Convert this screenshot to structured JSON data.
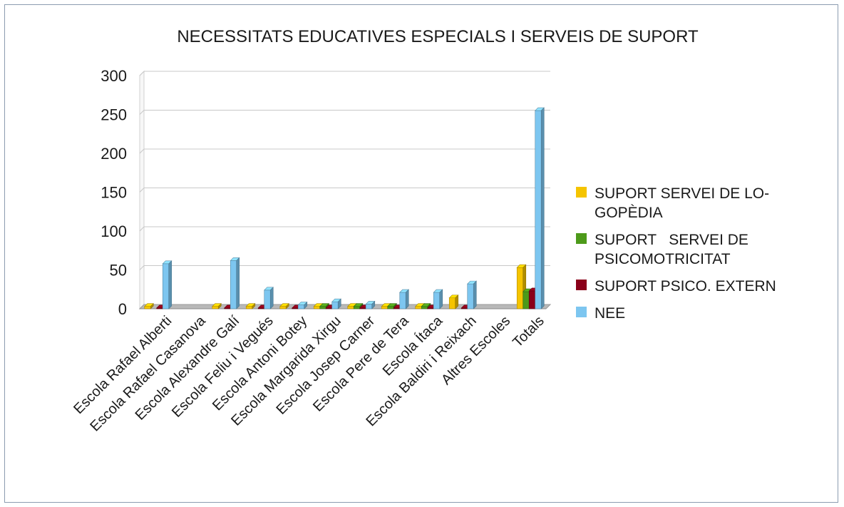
{
  "chart_data": {
    "type": "bar",
    "title": "NECESSITATS EDUCATIVES ESPECIALS I SERVEIS DE SUPORT",
    "categories": [
      "Escola Rafael Alberti",
      "Escola Rafael Casanova",
      "Escola Alexandre Galí",
      "Escola Feliu i Vegués",
      "Escola Antoni Botey",
      "Escola Margarida Xirgu",
      "Escola Josep Carner",
      "Escola Pere de Tera",
      "Escola Ítaca",
      "Escola Baldiri i Reixach",
      "Altres Escoles",
      "Totals"
    ],
    "series": [
      {
        "name": "SUPORT SERVEI DE LO-GOPÈDIA",
        "color": "#f5c400",
        "values": [
          3,
          0,
          3,
          3,
          3,
          3,
          3,
          3,
          3,
          14,
          0,
          53
        ]
      },
      {
        "name": "SUPORT   SERVEI DE PSICOMOTRICITAT",
        "color": "#4d9a1a",
        "values": [
          0,
          0,
          0,
          0,
          0,
          3,
          3,
          3,
          3,
          0,
          0,
          22
        ]
      },
      {
        "name": "SUPORT PSICO. EXTERN",
        "color": "#8a0019",
        "values": [
          1,
          0,
          1,
          1,
          1,
          1,
          1,
          1,
          1,
          1,
          0,
          23
        ]
      },
      {
        "name": "NEE",
        "color": "#7dc6f0",
        "values": [
          58,
          0,
          62,
          24,
          5,
          9,
          6,
          21,
          21,
          32,
          0,
          255
        ]
      }
    ],
    "yticks": [
      "0",
      "50",
      "100",
      "150",
      "200",
      "250",
      "300"
    ],
    "ylim": [
      0,
      300
    ],
    "grid": true,
    "legend_position": "right"
  }
}
